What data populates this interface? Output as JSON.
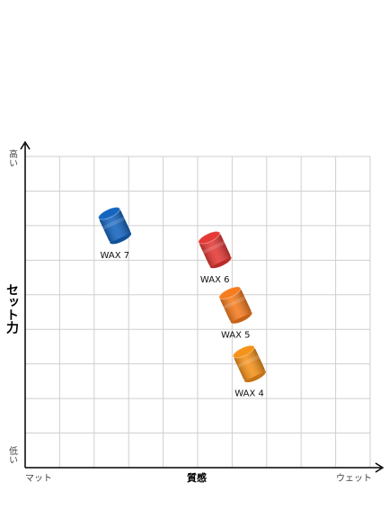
{
  "chart_data": {
    "type": "scatter",
    "title": "",
    "xlabel": "質感",
    "ylabel": "セット力",
    "x_tick_labels": {
      "low": "マット",
      "high": "ウェット"
    },
    "y_tick_labels": {
      "low": "低い",
      "high": "高い"
    },
    "xlim": [
      0,
      10
    ],
    "ylim": [
      0,
      9
    ],
    "grid": true,
    "legend": "none",
    "points": [
      {
        "label": "WAX 7",
        "x": 2.6,
        "y": 7.0,
        "color": "#1565c0"
      },
      {
        "label": "WAX 6",
        "x": 5.5,
        "y": 6.3,
        "color": "#e53935"
      },
      {
        "label": "WAX 5",
        "x": 6.1,
        "y": 4.7,
        "color": "#f57c1f"
      },
      {
        "label": "WAX 4",
        "x": 6.5,
        "y": 3.0,
        "color": "#f5921a"
      }
    ]
  }
}
